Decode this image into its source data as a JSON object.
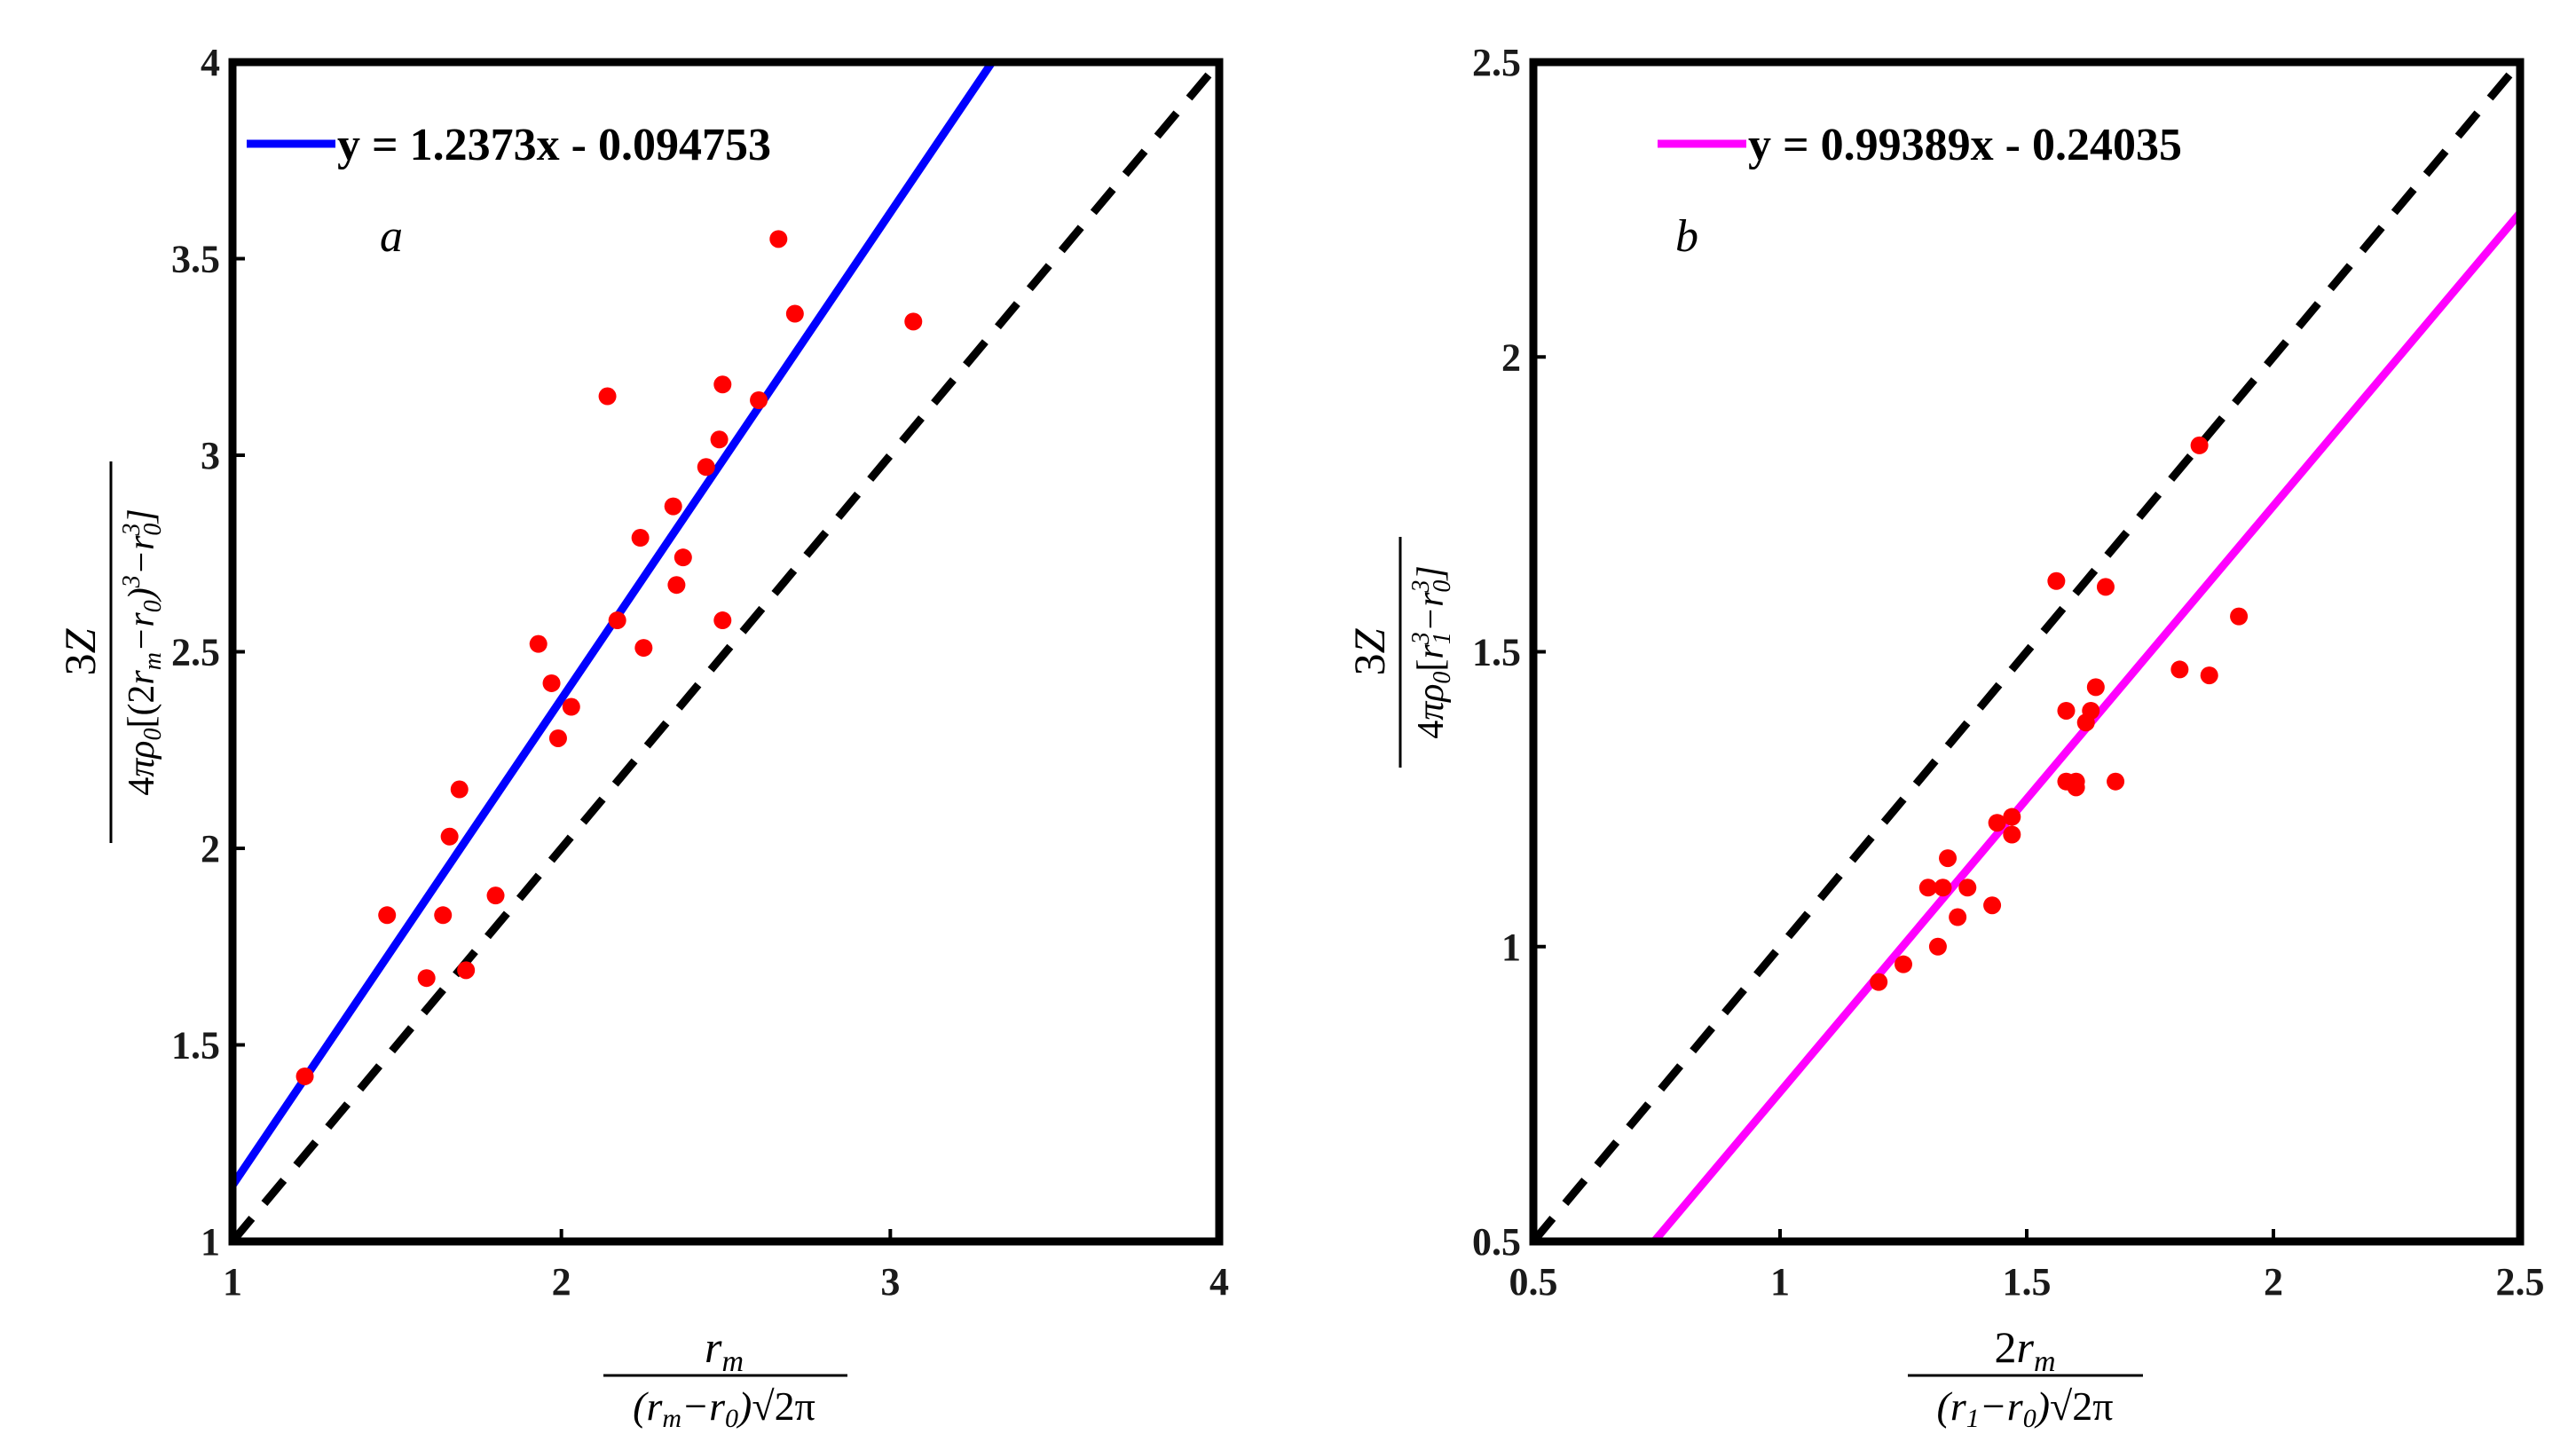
{
  "chart_data": [
    {
      "type": "scatter",
      "panel_label": "a",
      "xlim": [
        1,
        4
      ],
      "ylim": [
        1,
        4
      ],
      "xticks": [
        "1",
        "2",
        "3",
        "4"
      ],
      "yticks": [
        "1",
        "1.5",
        "2",
        "2.5",
        "3",
        "3.5",
        "4"
      ],
      "xlabel": "r_m / ((r_m − r_0)√(2π))",
      "ylabel": "3Z / (4πρ_0[(2r_m − r_0)^3 − r_0^3])",
      "fit": {
        "slope": 1.2373,
        "intercept": -0.094753,
        "color": "#0000ff",
        "legend": "y = 1.2373x - 0.094753"
      },
      "reference_line": {
        "slope": 1,
        "intercept": 0,
        "style": "dashed",
        "color": "#000000"
      },
      "point_color": "#ff0000",
      "points": [
        [
          1.22,
          1.42
        ],
        [
          1.47,
          1.83
        ],
        [
          1.59,
          1.67
        ],
        [
          1.64,
          1.83
        ],
        [
          1.66,
          2.03
        ],
        [
          1.69,
          2.15
        ],
        [
          1.71,
          1.69
        ],
        [
          1.8,
          1.88
        ],
        [
          1.93,
          2.52
        ],
        [
          1.97,
          2.42
        ],
        [
          1.99,
          2.28
        ],
        [
          2.03,
          2.36
        ],
        [
          2.14,
          3.15
        ],
        [
          2.17,
          2.58
        ],
        [
          2.24,
          2.79
        ],
        [
          2.25,
          2.51
        ],
        [
          2.34,
          2.87
        ],
        [
          2.35,
          2.67
        ],
        [
          2.37,
          2.74
        ],
        [
          2.44,
          2.97
        ],
        [
          2.48,
          3.04
        ],
        [
          2.49,
          3.18
        ],
        [
          2.49,
          2.58
        ],
        [
          2.6,
          3.14
        ],
        [
          2.66,
          3.55
        ],
        [
          2.71,
          3.36
        ],
        [
          3.07,
          3.34
        ]
      ]
    },
    {
      "type": "scatter",
      "panel_label": "b",
      "xlim": [
        0.5,
        2.5
      ],
      "ylim": [
        0.5,
        2.5
      ],
      "xticks": [
        "0.5",
        "1",
        "1.5",
        "2",
        "2.5"
      ],
      "yticks": [
        "0.5",
        "1",
        "1.5",
        "2",
        "2.5"
      ],
      "xlabel": "2r_m / ((r_1 − r_0)√(2π))",
      "ylabel": "3Z / (4πρ_0[r_1^3 − r_0^3])",
      "fit": {
        "slope": 0.99389,
        "intercept": -0.24035,
        "color": "#ff00ff",
        "legend": "y = 0.99389x - 0.24035"
      },
      "reference_line": {
        "slope": 1,
        "intercept": 0,
        "style": "dashed",
        "color": "#000000"
      },
      "point_color": "#ff0000",
      "points": [
        [
          1.2,
          0.94
        ],
        [
          1.25,
          0.97
        ],
        [
          1.3,
          1.1
        ],
        [
          1.32,
          1.0
        ],
        [
          1.33,
          1.1
        ],
        [
          1.34,
          1.15
        ],
        [
          1.36,
          1.05
        ],
        [
          1.38,
          1.1
        ],
        [
          1.43,
          1.07
        ],
        [
          1.44,
          1.21
        ],
        [
          1.47,
          1.19
        ],
        [
          1.47,
          1.22
        ],
        [
          1.56,
          1.62
        ],
        [
          1.58,
          1.4
        ],
        [
          1.58,
          1.28
        ],
        [
          1.6,
          1.27
        ],
        [
          1.6,
          1.28
        ],
        [
          1.62,
          1.38
        ],
        [
          1.63,
          1.4
        ],
        [
          1.64,
          1.44
        ],
        [
          1.66,
          1.61
        ],
        [
          1.68,
          1.28
        ],
        [
          1.81,
          1.47
        ],
        [
          1.85,
          1.85
        ],
        [
          1.87,
          1.46
        ],
        [
          1.93,
          1.56
        ]
      ]
    }
  ]
}
